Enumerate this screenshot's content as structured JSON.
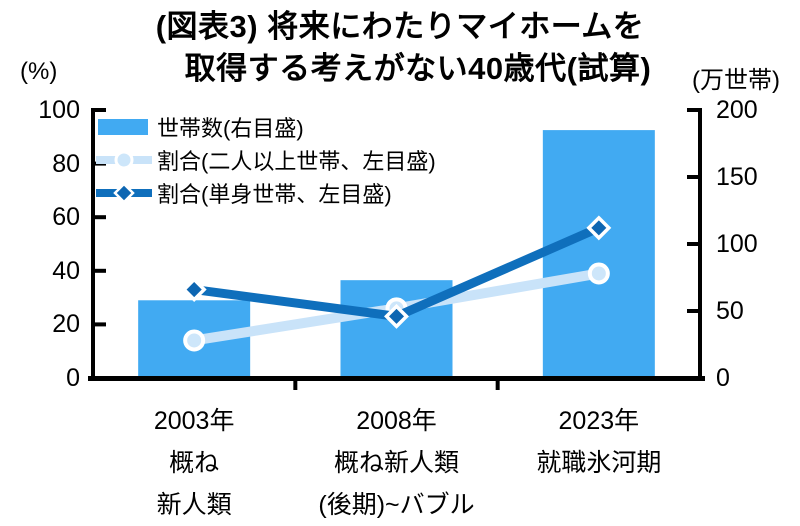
{
  "chart_data": {
    "type": "combo_bar_line",
    "title_line1": "(図表3) 将来にわたりマイホームを",
    "title_line2": "取得する考えがない40歳代(試算)",
    "categories": [
      {
        "lines": [
          "2003年",
          "概ね",
          "新人類"
        ]
      },
      {
        "lines": [
          "2008年",
          "概ね新人類",
          "(後期)~バブル"
        ]
      },
      {
        "lines": [
          "2023年",
          "就職氷河期"
        ]
      }
    ],
    "bar_series": {
      "name": "世帯数(右目盛)",
      "axis": "right",
      "values": [
        58,
        73,
        185
      ],
      "color": "#41AAF2"
    },
    "line_series": [
      {
        "name": "割合(二人以上世帯、左目盛)",
        "axis": "left",
        "values": [
          14,
          26,
          39
        ],
        "marker": "circle",
        "color": "#C9E3F9",
        "marker_fill": "#CDE6FA",
        "stroke_width": 10
      },
      {
        "name": "割合(単身世帯、左目盛)",
        "axis": "left",
        "values": [
          33,
          23,
          56
        ],
        "marker": "diamond",
        "color": "#0F6FBC",
        "marker_fill": "#0D66B2",
        "stroke_width": 9
      }
    ],
    "left_axis": {
      "unit": "(%)",
      "ticks": [
        0,
        20,
        40,
        60,
        80,
        100
      ],
      "range": [
        0,
        100
      ]
    },
    "right_axis": {
      "unit": "(万世帯)",
      "ticks": [
        0,
        50,
        100,
        150,
        200
      ],
      "range": [
        0,
        200
      ]
    },
    "grid": false,
    "legend_position": "top-left-inside",
    "axis_color": "#000000"
  }
}
